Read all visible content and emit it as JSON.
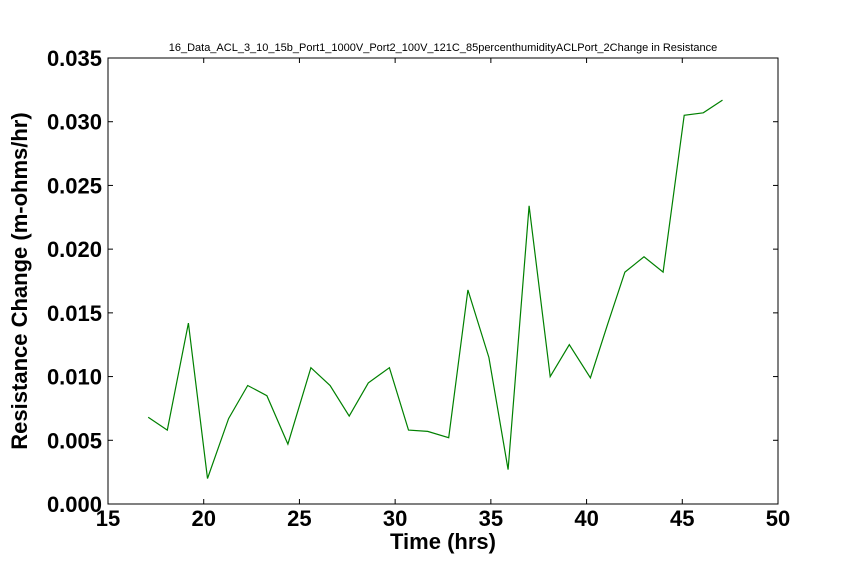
{
  "chart_data": {
    "type": "line",
    "title": "16_Data_ACL_3_10_15b_Port1_1000V_Port2_100V_121C_85percenthumidityACLPort_2Change in Resistance",
    "xlabel": "Time (hrs)",
    "ylabel": "Resistance Change (m-ohms/hr)",
    "xlim": [
      15,
      50
    ],
    "ylim": [
      0,
      0.035
    ],
    "xticks": [
      15,
      20,
      25,
      30,
      35,
      40,
      45,
      50
    ],
    "xtick_labels": [
      "15",
      "20",
      "25",
      "30",
      "35",
      "40",
      "45",
      "50"
    ],
    "yticks": [
      0,
      0.005,
      0.01,
      0.015,
      0.02,
      0.025,
      0.03,
      0.035
    ],
    "ytick_labels": [
      "0.000",
      "0.005",
      "0.010",
      "0.015",
      "0.020",
      "0.025",
      "0.030",
      "0.035"
    ],
    "grid": false,
    "series": [
      {
        "color": "#008000",
        "x": [
          17.1,
          18.1,
          19.2,
          20.2,
          21.3,
          22.3,
          23.3,
          24.4,
          25.6,
          26.6,
          27.6,
          28.6,
          29.7,
          30.7,
          31.7,
          32.8,
          33.8,
          34.9,
          35.9,
          37.0,
          38.1,
          39.1,
          40.2,
          41.1,
          42.0,
          43.0,
          44.0,
          45.1,
          46.1,
          47.1
        ],
        "y": [
          0.0068,
          0.0058,
          0.0142,
          0.002,
          0.0067,
          0.0093,
          0.0085,
          0.0047,
          0.0107,
          0.0093,
          0.0069,
          0.0095,
          0.0107,
          0.0058,
          0.0057,
          0.0052,
          0.0168,
          0.0115,
          0.0027,
          0.0234,
          0.01,
          0.0125,
          0.0099,
          0.0141,
          0.0182,
          0.0194,
          0.0182,
          0.0305,
          0.0307,
          0.0317
        ]
      }
    ]
  }
}
